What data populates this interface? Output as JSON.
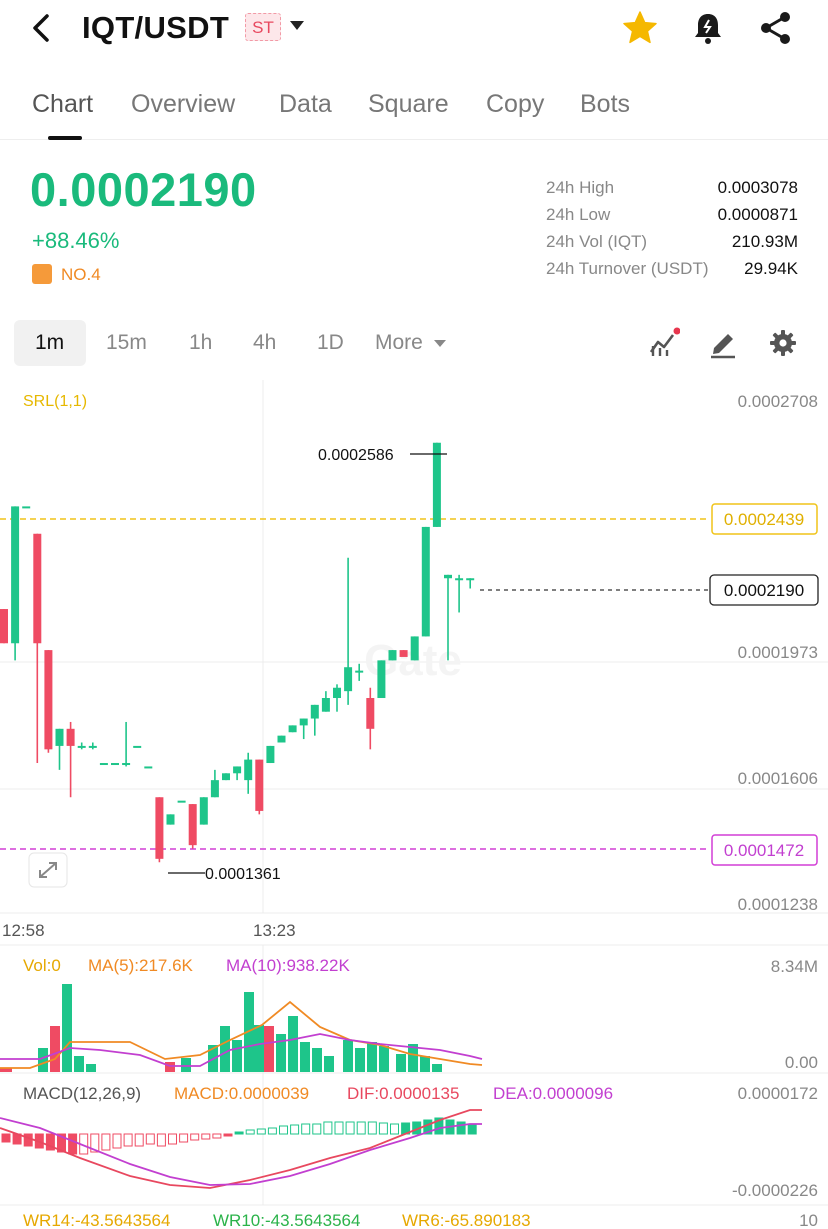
{
  "header": {
    "pair": "IQT/USDT",
    "badge": "ST"
  },
  "tabs": [
    "Chart",
    "Overview",
    "Data",
    "Square",
    "Copy",
    "Bots"
  ],
  "active_tab": "Chart",
  "ticker": {
    "price": "0.0002190",
    "change": "+88.46%",
    "rank": "NO.4",
    "stats": [
      {
        "label": "24h High",
        "value": "0.0003078"
      },
      {
        "label": "24h Low",
        "value": "0.0000871"
      },
      {
        "label": "24h Vol (IQT)",
        "value": "210.93M"
      },
      {
        "label": "24h Turnover (USDT)",
        "value": "29.94K"
      }
    ]
  },
  "timeframes": [
    "1m",
    "15m",
    "1h",
    "4h",
    "1D",
    "More"
  ],
  "active_timeframe": "1m",
  "colors": {
    "up": "#1ec58a",
    "down": "#ef4b63",
    "accent": "#f0c419",
    "magenta": "#c23fd0"
  },
  "icons": [
    "back-icon",
    "star-icon",
    "alert-bell-icon",
    "share-icon",
    "indicator-icon",
    "draw-icon",
    "settings-icon",
    "expand-icon"
  ],
  "chart_data": {
    "type": "candlestick",
    "indicator": "SRL(1,1)",
    "watermark": "Gate",
    "y_ticks": [
      "0.0002708",
      "0.0001973",
      "0.0001606",
      "0.0001238"
    ],
    "x_ticks": [
      "12:58",
      "13:23"
    ],
    "srl_high": "0.0002439",
    "srl_low": "0.0001472",
    "last_price": "0.0002190",
    "max_label": "0.0002586",
    "min_label": "0.0001361",
    "ylim": [
      0.0001238,
      0.0002708
    ],
    "candles": [
      {
        "o": 0.00021,
        "h": 0.00021,
        "l": 0.0002,
        "c": 0.0002
      },
      {
        "o": 0.0002,
        "h": 0.00024,
        "l": 0.000195,
        "c": 0.00024
      },
      {
        "o": 0.00024,
        "h": 0.00024,
        "l": 0.00024,
        "c": 0.00024
      },
      {
        "o": 0.000232,
        "h": 0.000232,
        "l": 0.000165,
        "c": 0.0002
      },
      {
        "o": 0.000198,
        "h": 0.000198,
        "l": 0.000168,
        "c": 0.000169
      },
      {
        "o": 0.00017,
        "h": 0.000175,
        "l": 0.000163,
        "c": 0.000175
      },
      {
        "o": 0.000175,
        "h": 0.000177,
        "l": 0.000155,
        "c": 0.00017
      },
      {
        "o": 0.00017,
        "h": 0.000171,
        "l": 0.000169,
        "c": 0.00017
      },
      {
        "o": 0.00017,
        "h": 0.000171,
        "l": 0.000169,
        "c": 0.00017
      },
      {
        "o": 0.000165,
        "h": 0.000165,
        "l": 0.000165,
        "c": 0.000165
      },
      {
        "o": 0.000165,
        "h": 0.000165,
        "l": 0.000165,
        "c": 0.000165
      },
      {
        "o": 0.000165,
        "h": 0.000177,
        "l": 0.000164,
        "c": 0.000165
      },
      {
        "o": 0.00017,
        "h": 0.00017,
        "l": 0.00017,
        "c": 0.00017
      },
      {
        "o": 0.000164,
        "h": 0.000164,
        "l": 0.000164,
        "c": 0.000164
      },
      {
        "o": 0.000155,
        "h": 0.000155,
        "l": 0.000136,
        "c": 0.000137
      },
      {
        "o": 0.000147,
        "h": 0.00015,
        "l": 0.000147,
        "c": 0.00015
      },
      {
        "o": 0.000154,
        "h": 0.000154,
        "l": 0.000154,
        "c": 0.000154
      },
      {
        "o": 0.000153,
        "h": 0.000153,
        "l": 0.00014,
        "c": 0.000141
      },
      {
        "o": 0.000147,
        "h": 0.000155,
        "l": 0.000147,
        "c": 0.000155
      },
      {
        "o": 0.000155,
        "h": 0.000163,
        "l": 0.000155,
        "c": 0.00016
      },
      {
        "o": 0.00016,
        "h": 0.000162,
        "l": 0.00016,
        "c": 0.000162
      },
      {
        "o": 0.000162,
        "h": 0.000164,
        "l": 0.00016,
        "c": 0.000164
      },
      {
        "o": 0.00016,
        "h": 0.000168,
        "l": 0.000156,
        "c": 0.000166
      },
      {
        "o": 0.000166,
        "h": 0.000166,
        "l": 0.00015,
        "c": 0.000151
      },
      {
        "o": 0.000165,
        "h": 0.00017,
        "l": 0.000165,
        "c": 0.00017
      },
      {
        "o": 0.000171,
        "h": 0.000173,
        "l": 0.000171,
        "c": 0.000173
      },
      {
        "o": 0.000174,
        "h": 0.000176,
        "l": 0.000174,
        "c": 0.000176
      },
      {
        "o": 0.000176,
        "h": 0.000178,
        "l": 0.000172,
        "c": 0.000178
      },
      {
        "o": 0.000178,
        "h": 0.000182,
        "l": 0.000173,
        "c": 0.000182
      },
      {
        "o": 0.00018,
        "h": 0.000186,
        "l": 0.00018,
        "c": 0.000184
      },
      {
        "o": 0.000184,
        "h": 0.000188,
        "l": 0.00018,
        "c": 0.000187
      },
      {
        "o": 0.000186,
        "h": 0.000225,
        "l": 0.000182,
        "c": 0.000193
      },
      {
        "o": 0.000192,
        "h": 0.000194,
        "l": 0.000189,
        "c": 0.000192
      },
      {
        "o": 0.000184,
        "h": 0.000187,
        "l": 0.000169,
        "c": 0.000175
      },
      {
        "o": 0.000184,
        "h": 0.000195,
        "l": 0.000184,
        "c": 0.000195
      },
      {
        "o": 0.000195,
        "h": 0.000198,
        "l": 0.000195,
        "c": 0.000198
      },
      {
        "o": 0.000198,
        "h": 0.000198,
        "l": 0.000197,
        "c": 0.000196
      },
      {
        "o": 0.000195,
        "h": 0.000202,
        "l": 0.000195,
        "c": 0.000202
      },
      {
        "o": 0.000202,
        "h": 0.000234,
        "l": 0.000202,
        "c": 0.000234
      },
      {
        "o": 0.000234,
        "h": 0.0002586,
        "l": 0.000234,
        "c": 0.0002586
      },
      {
        "o": 0.000219,
        "h": 0.00022,
        "l": 0.000195,
        "c": 0.00022
      },
      {
        "o": 0.000219,
        "h": 0.00022,
        "l": 0.000209,
        "c": 0.000219
      },
      {
        "o": 0.000219,
        "h": 0.000219,
        "l": 0.000216,
        "c": 0.000219
      }
    ],
    "volume": {
      "labels": {
        "vol": "Vol:0",
        "ma5": "MA(5):217.6K",
        "ma10": "MA(10):938.22K"
      },
      "axis_top": "8.34M",
      "axis_bottom": "0.00"
    },
    "macd": {
      "label": "MACD(12,26,9)",
      "macd": "MACD:0.0000039",
      "dif": "DIF:0.0000135",
      "dea": "DEA:0.0000096",
      "axis_top": "0.0000172",
      "axis_bottom": "-0.0000226"
    },
    "wr": {
      "wr14": "WR14:-43.5643564",
      "wr10": "WR10:-43.5643564",
      "wr6": "WR6:-65.890183",
      "axis_top": "10"
    }
  }
}
